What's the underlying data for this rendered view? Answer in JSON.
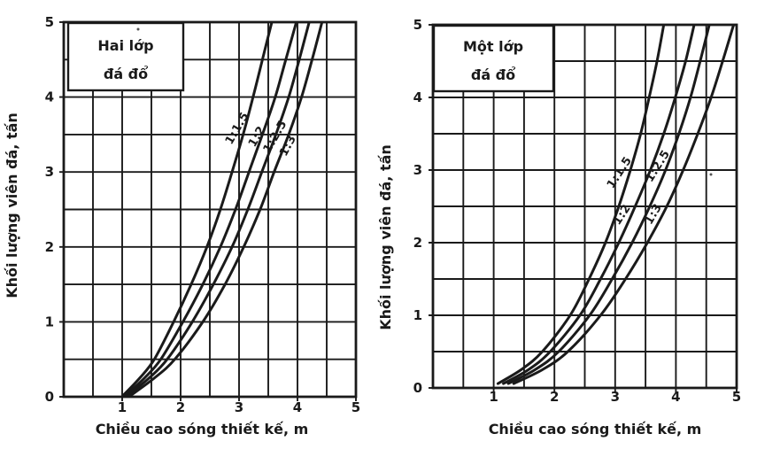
{
  "figure": {
    "background": "#ffffff",
    "ink": "#1a1a1a"
  },
  "chart_data": [
    {
      "type": "line",
      "legend_box": [
        "Hai lớp",
        "đá đổ"
      ],
      "xlabel": "Chiều cao sóng thiết kế, m",
      "ylabel": "Khối lượng viên đá, tấn",
      "xlim": [
        0,
        5
      ],
      "ylim": [
        0,
        5
      ],
      "x_ticks": [
        1,
        2,
        3,
        4,
        5
      ],
      "y_ticks": [
        0,
        1,
        2,
        3,
        4,
        5
      ],
      "grid": true,
      "grid_step": 0.5,
      "w_levels": [
        0.02,
        0.25,
        0.5,
        1,
        1.5,
        2,
        2.5,
        3,
        3.5,
        4,
        4.5,
        5
      ],
      "series": [
        {
          "name": "1:1.5",
          "h_values": [
            1.02,
            1.3,
            1.55,
            1.88,
            2.18,
            2.45,
            2.68,
            2.88,
            3.07,
            3.24,
            3.4,
            3.56
          ],
          "label_pos": [
            3.02,
            3.56
          ],
          "label_angle": -60
        },
        {
          "name": "1:2",
          "h_values": [
            1.06,
            1.38,
            1.66,
            2.04,
            2.38,
            2.68,
            2.94,
            3.17,
            3.4,
            3.62,
            3.8,
            3.98
          ],
          "label_pos": [
            3.36,
            3.45
          ],
          "label_angle": -60
        },
        {
          "name": "1:2.5",
          "h_values": [
            1.1,
            1.46,
            1.77,
            2.2,
            2.56,
            2.88,
            3.15,
            3.39,
            3.63,
            3.85,
            4.03,
            4.2
          ],
          "label_pos": [
            3.67,
            3.45
          ],
          "label_angle": -60
        },
        {
          "name": "1:3",
          "h_values": [
            1.15,
            1.55,
            1.9,
            2.38,
            2.76,
            3.08,
            3.36,
            3.6,
            3.85,
            4.07,
            4.25,
            4.42
          ],
          "label_pos": [
            3.89,
            3.33
          ],
          "label_angle": -62
        }
      ]
    },
    {
      "type": "line",
      "legend_box": [
        "Một lớp",
        "đá đổ"
      ],
      "xlabel": "Chiều cao sóng thiết kế, m",
      "ylabel": "Khối lượng viên đá, tấn",
      "xlim": [
        0,
        5
      ],
      "ylim": [
        0,
        5
      ],
      "x_ticks": [
        1,
        2,
        3,
        4,
        5
      ],
      "y_ticks": [
        0,
        1,
        2,
        3,
        4,
        5
      ],
      "grid": true,
      "grid_step": 0.5,
      "w_levels": [
        0.06,
        0.25,
        0.5,
        1,
        1.5,
        2,
        2.5,
        3,
        3.5,
        4,
        4.5,
        5
      ],
      "series": [
        {
          "name": "1:1.5",
          "h_values": [
            1.07,
            1.45,
            1.8,
            2.26,
            2.57,
            2.84,
            3.06,
            3.25,
            3.42,
            3.56,
            3.69,
            3.8
          ],
          "label_pos": [
            3.12,
            2.94
          ],
          "label_angle": -57
        },
        {
          "name": "1:2",
          "h_values": [
            1.16,
            1.57,
            1.93,
            2.42,
            2.76,
            3.06,
            3.33,
            3.58,
            3.8,
            3.99,
            4.16,
            4.3
          ],
          "label_pos": [
            3.16,
            2.36
          ],
          "label_angle": -57
        },
        {
          "name": "1:2.5",
          "h_values": [
            1.24,
            1.68,
            2.07,
            2.58,
            2.95,
            3.28,
            3.57,
            3.83,
            4.05,
            4.24,
            4.4,
            4.55
          ],
          "label_pos": [
            3.75,
            3.03
          ],
          "label_angle": -58
        },
        {
          "name": "1:3",
          "h_values": [
            1.33,
            1.8,
            2.22,
            2.76,
            3.17,
            3.53,
            3.85,
            4.12,
            4.36,
            4.58,
            4.77,
            4.95
          ],
          "label_pos": [
            3.68,
            2.37
          ],
          "label_angle": -60
        }
      ]
    }
  ]
}
